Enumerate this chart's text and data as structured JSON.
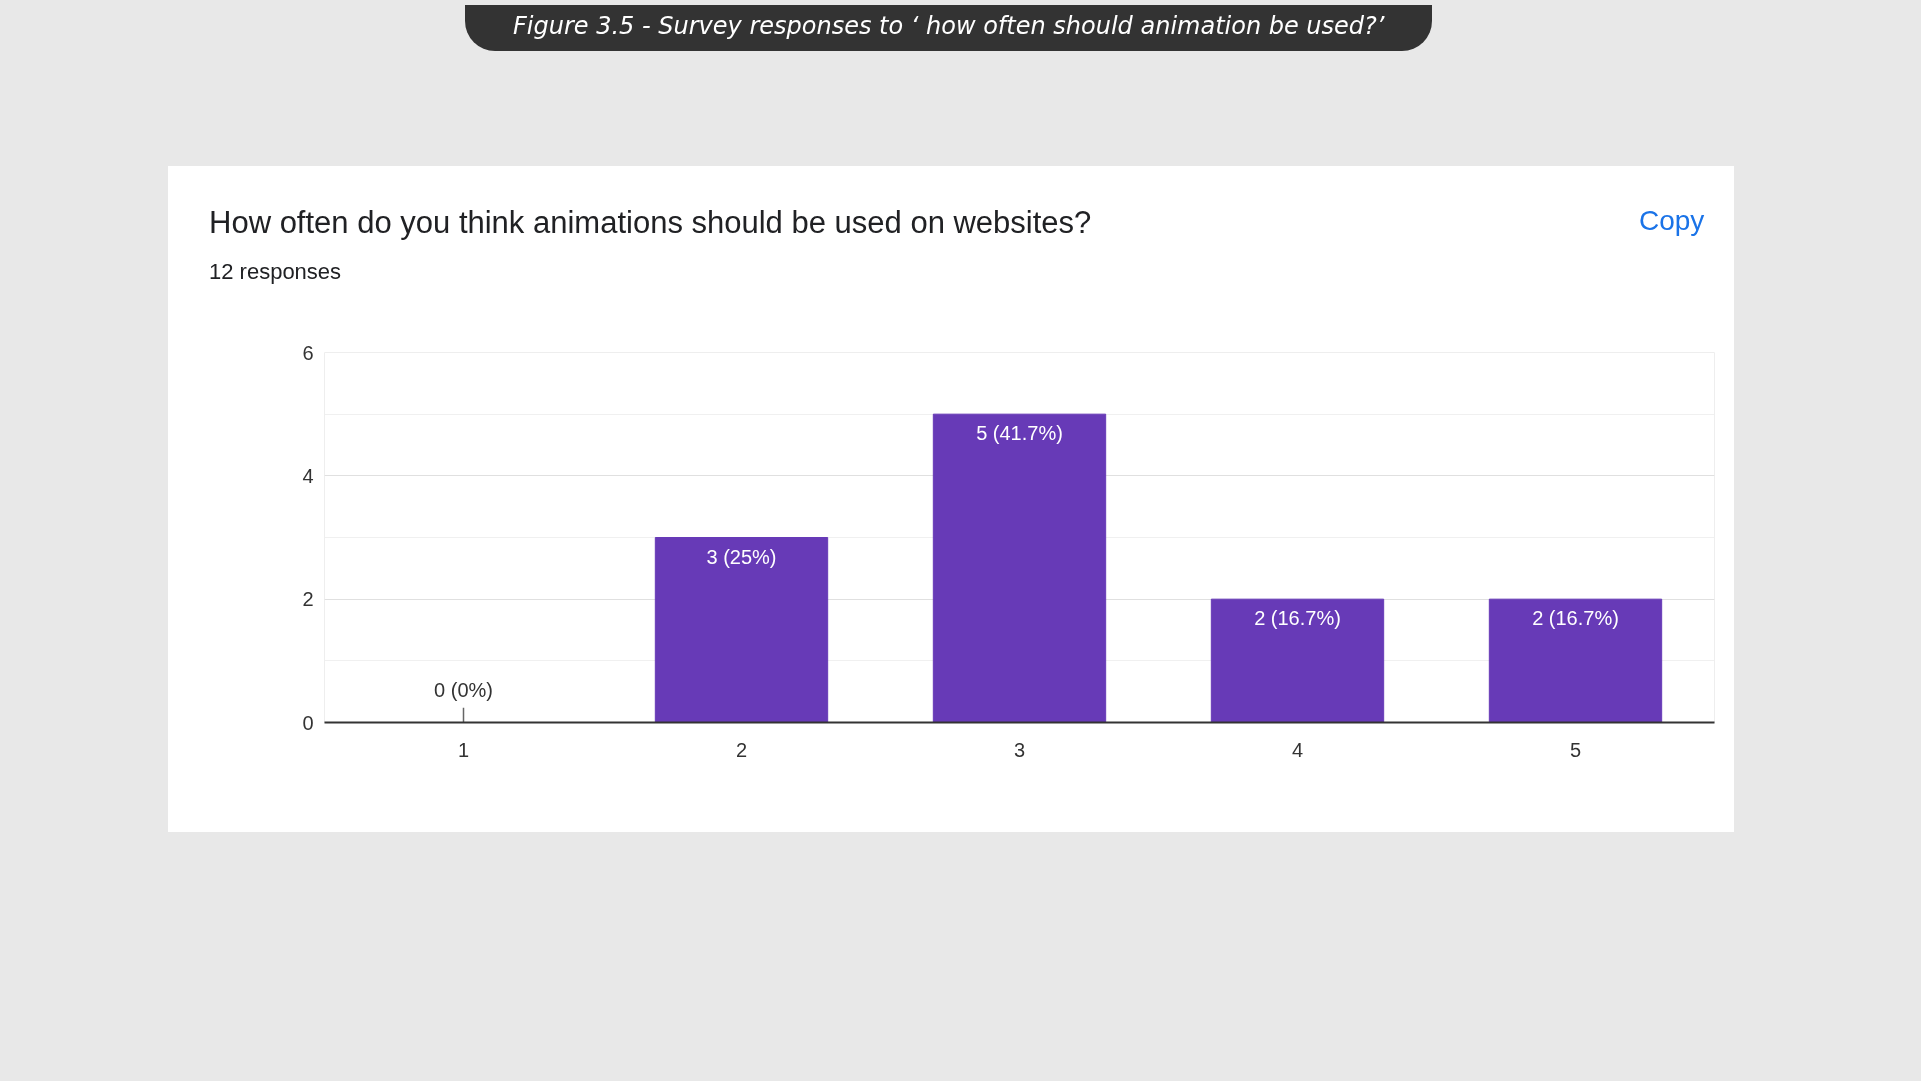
{
  "chart_data": {
    "type": "bar",
    "title": "How often do you think animations should be used on websites?",
    "subtitle": "12 responses",
    "annotations": [
      "Figure 3.5 - Survey responses to ‘ how often should animation be used?’",
      "Copy"
    ],
    "categories": [
      "1",
      "2",
      "3",
      "4",
      "5"
    ],
    "values": [
      0,
      3,
      5,
      2,
      2
    ],
    "color": "#673ab7",
    "value_labels": [
      "0 (0%)",
      "3 (25%)",
      "5 (41.7%)",
      "2 (16.7%)",
      "2 (16.7%)"
    ],
    "ylim": [
      0,
      6
    ],
    "yticks": [
      0,
      2,
      4,
      6
    ],
    "grid": "y"
  }
}
